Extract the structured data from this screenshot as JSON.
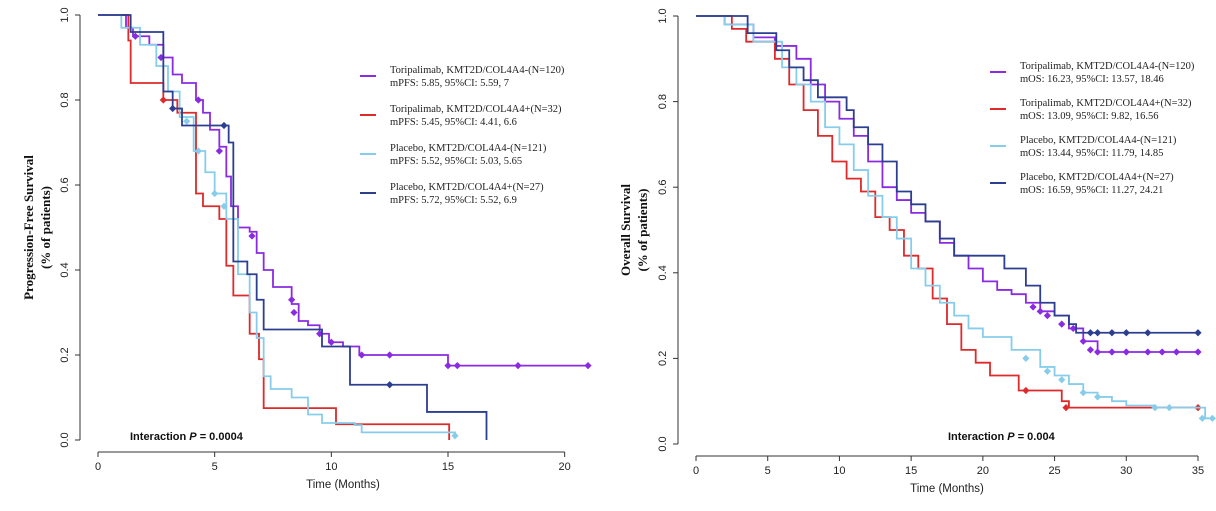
{
  "chart_data": [
    {
      "type": "line",
      "subtype": "kaplan-meier",
      "ylabel_line1": "Progression-Free Survival",
      "ylabel_line2": "(% of patients)",
      "xlabel": "Time (Months)",
      "xlim": [
        0,
        21
      ],
      "ylim": [
        0,
        1
      ],
      "xticks": [
        0,
        5,
        10,
        15,
        20
      ],
      "yticks": [
        "0.0",
        "0.2",
        "0.4",
        "0.6",
        "0.8",
        "1.0"
      ],
      "annotation": {
        "prefix": "Interaction ",
        "p": "P",
        "suffix": " = 0.0004"
      },
      "series": [
        {
          "name": "Toripalimab, KMT2D/COL4A4-(N=120)",
          "stat": "mPFS: 5.85, 95%CI: 5.59, 7",
          "color": "#8a2be2",
          "points": [
            [
              0,
              1.0
            ],
            [
              1.2,
              0.97
            ],
            [
              1.5,
              0.95
            ],
            [
              2.2,
              0.93
            ],
            [
              2.8,
              0.9
            ],
            [
              3.2,
              0.86
            ],
            [
              3.6,
              0.84
            ],
            [
              4.2,
              0.8
            ],
            [
              4.5,
              0.77
            ],
            [
              4.8,
              0.73
            ],
            [
              5.2,
              0.69
            ],
            [
              5.5,
              0.62
            ],
            [
              5.7,
              0.55
            ],
            [
              6.0,
              0.5
            ],
            [
              6.5,
              0.49
            ],
            [
              6.8,
              0.44
            ],
            [
              7.1,
              0.4
            ],
            [
              7.5,
              0.36
            ],
            [
              8.1,
              0.36
            ],
            [
              8.3,
              0.32
            ],
            [
              8.6,
              0.28
            ],
            [
              9.0,
              0.27
            ],
            [
              9.5,
              0.25
            ],
            [
              9.9,
              0.23
            ],
            [
              10.5,
              0.22
            ],
            [
              11.2,
              0.2
            ],
            [
              12.8,
              0.2
            ],
            [
              15.0,
              0.175
            ],
            [
              21.0,
              0.175
            ]
          ],
          "censors": [
            [
              1.6,
              0.95
            ],
            [
              2.7,
              0.9
            ],
            [
              4.3,
              0.8
            ],
            [
              5.2,
              0.68
            ],
            [
              6.6,
              0.48
            ],
            [
              8.3,
              0.33
            ],
            [
              8.4,
              0.3
            ],
            [
              9.5,
              0.25
            ],
            [
              10.0,
              0.23
            ],
            [
              11.3,
              0.2
            ],
            [
              12.5,
              0.2
            ],
            [
              15.0,
              0.175
            ],
            [
              15.4,
              0.175
            ],
            [
              18.0,
              0.175
            ],
            [
              21.0,
              0.175
            ]
          ]
        },
        {
          "name": "Toripalimab, KMT2D/COL4A4+(N=32)",
          "stat": "mPFS: 5.45, 95%CI: 4.41, 6.6",
          "color": "#dd2a2a",
          "points": [
            [
              0,
              1.0
            ],
            [
              1.3,
              0.94
            ],
            [
              1.4,
              0.84
            ],
            [
              2.6,
              0.84
            ],
            [
              2.8,
              0.8
            ],
            [
              3.4,
              0.77
            ],
            [
              4.2,
              0.58
            ],
            [
              4.5,
              0.55
            ],
            [
              5.2,
              0.52
            ],
            [
              5.5,
              0.41
            ],
            [
              5.8,
              0.34
            ],
            [
              6.5,
              0.25
            ],
            [
              6.9,
              0.19
            ],
            [
              7.1,
              0.075
            ],
            [
              10.0,
              0.075
            ],
            [
              10.2,
              0.037
            ],
            [
              15.0,
              0.037
            ],
            [
              15.05,
              0.0
            ]
          ],
          "censors": [
            [
              2.8,
              0.8
            ]
          ]
        },
        {
          "name": "Placebo, KMT2D/COL4A4-(N=121)",
          "stat": "mPFS: 5.52, 95%CI: 5.03, 5.65",
          "color": "#87cdeb",
          "points": [
            [
              0,
              1.0
            ],
            [
              1.0,
              0.97
            ],
            [
              1.8,
              0.93
            ],
            [
              2.5,
              0.88
            ],
            [
              3.0,
              0.82
            ],
            [
              3.5,
              0.76
            ],
            [
              4.1,
              0.68
            ],
            [
              4.6,
              0.63
            ],
            [
              5.0,
              0.58
            ],
            [
              5.5,
              0.52
            ],
            [
              6.0,
              0.39
            ],
            [
              6.5,
              0.3
            ],
            [
              6.8,
              0.24
            ],
            [
              7.1,
              0.15
            ],
            [
              7.4,
              0.12
            ],
            [
              8.3,
              0.1
            ],
            [
              9.0,
              0.06
            ],
            [
              9.6,
              0.04
            ],
            [
              11.0,
              0.035
            ],
            [
              11.3,
              0.018
            ],
            [
              15.3,
              0.01
            ]
          ],
          "censors": [
            [
              3.8,
              0.75
            ],
            [
              4.3,
              0.68
            ],
            [
              5.0,
              0.58
            ],
            [
              5.4,
              0.55
            ],
            [
              15.3,
              0.01
            ]
          ]
        },
        {
          "name": "Placebo, KMT2D/COL4A4+(N=27)",
          "stat": "mPFS: 5.72, 95%CI: 5.52, 6.9",
          "color": "#2c3e90",
          "points": [
            [
              0,
              1.0
            ],
            [
              1.2,
              1.0
            ],
            [
              1.4,
              0.96
            ],
            [
              2.6,
              0.96
            ],
            [
              2.8,
              0.82
            ],
            [
              3.2,
              0.78
            ],
            [
              3.6,
              0.74
            ],
            [
              5.5,
              0.74
            ],
            [
              5.6,
              0.7
            ],
            [
              5.8,
              0.42
            ],
            [
              6.4,
              0.39
            ],
            [
              6.8,
              0.33
            ],
            [
              7.1,
              0.26
            ],
            [
              9.4,
              0.26
            ],
            [
              9.6,
              0.22
            ],
            [
              10.8,
              0.13
            ],
            [
              14.0,
              0.13
            ],
            [
              14.1,
              0.066
            ],
            [
              16.65,
              0.066
            ],
            [
              16.65,
              0.0
            ]
          ],
          "censors": [
            [
              3.2,
              0.78
            ],
            [
              5.4,
              0.74
            ],
            [
              12.5,
              0.13
            ]
          ]
        }
      ]
    },
    {
      "type": "line",
      "subtype": "kaplan-meier",
      "ylabel_line1": "Overall Survival",
      "ylabel_line2": "(% of patients)",
      "xlabel": "Time (Months)",
      "xlim": [
        0,
        35
      ],
      "ylim": [
        0,
        1
      ],
      "xticks": [
        0,
        5,
        10,
        15,
        20,
        25,
        30,
        35
      ],
      "yticks": [
        "0.0",
        "0.2",
        "0.4",
        "0.6",
        "0.8",
        "1.0"
      ],
      "annotation": {
        "prefix": "Interaction ",
        "p": "P",
        "suffix": " = 0.004"
      },
      "series": [
        {
          "name": "Toripalimab, KMT2D/COL4A4-(N=120)",
          "stat": "mOS: 16.23, 95%CI: 13.57, 18.46",
          "color": "#8a2be2",
          "points": [
            [
              0,
              1.0
            ],
            [
              2,
              0.98
            ],
            [
              4,
              0.95
            ],
            [
              5.5,
              0.93
            ],
            [
              7,
              0.9
            ],
            [
              8,
              0.84
            ],
            [
              9,
              0.8
            ],
            [
              10,
              0.76
            ],
            [
              11,
              0.72
            ],
            [
              12,
              0.66
            ],
            [
              13,
              0.6
            ],
            [
              14,
              0.57
            ],
            [
              15,
              0.54
            ],
            [
              16,
              0.52
            ],
            [
              17,
              0.47
            ],
            [
              18,
              0.44
            ],
            [
              19,
              0.41
            ],
            [
              20,
              0.38
            ],
            [
              21,
              0.36
            ],
            [
              22,
              0.35
            ],
            [
              23,
              0.33
            ],
            [
              24,
              0.31
            ],
            [
              25,
              0.3
            ],
            [
              26,
              0.27
            ],
            [
              27,
              0.24
            ],
            [
              28,
              0.215
            ],
            [
              35,
              0.215
            ]
          ],
          "censors": [
            [
              23.5,
              0.32
            ],
            [
              24,
              0.31
            ],
            [
              24.5,
              0.3
            ],
            [
              25.5,
              0.28
            ],
            [
              26.3,
              0.27
            ],
            [
              27,
              0.24
            ],
            [
              27.5,
              0.22
            ],
            [
              28,
              0.215
            ],
            [
              29,
              0.215
            ],
            [
              30,
              0.215
            ],
            [
              31.5,
              0.215
            ],
            [
              32.5,
              0.215
            ],
            [
              33.5,
              0.215
            ],
            [
              35,
              0.215
            ]
          ]
        },
        {
          "name": "Toripalimab, KMT2D/COL4A4+(N=32)",
          "stat": "mOS: 13.09, 95%CI: 9.82, 16.56",
          "color": "#dd2a2a",
          "points": [
            [
              0,
              1.0
            ],
            [
              2.5,
              0.97
            ],
            [
              3.5,
              0.94
            ],
            [
              5.5,
              0.9
            ],
            [
              6.5,
              0.84
            ],
            [
              7.5,
              0.78
            ],
            [
              8.5,
              0.72
            ],
            [
              9.5,
              0.66
            ],
            [
              10.5,
              0.62
            ],
            [
              11.5,
              0.59
            ],
            [
              12.5,
              0.53
            ],
            [
              13.5,
              0.5
            ],
            [
              14.5,
              0.44
            ],
            [
              15.5,
              0.41
            ],
            [
              16.5,
              0.34
            ],
            [
              17.5,
              0.28
            ],
            [
              18.5,
              0.22
            ],
            [
              19.5,
              0.19
            ],
            [
              20.5,
              0.16
            ],
            [
              22.5,
              0.125
            ],
            [
              25.5,
              0.1
            ],
            [
              26,
              0.085
            ],
            [
              35,
              0.085
            ]
          ],
          "censors": [
            [
              23,
              0.125
            ],
            [
              25.8,
              0.085
            ],
            [
              35,
              0.085
            ]
          ]
        },
        {
          "name": "Placebo, KMT2D/COL4A4-(N=121)",
          "stat": "mOS: 13.44, 95%CI: 11.79, 14.85",
          "color": "#87cdeb",
          "points": [
            [
              0,
              1.0
            ],
            [
              2,
              0.98
            ],
            [
              4,
              0.94
            ],
            [
              6,
              0.88
            ],
            [
              7,
              0.84
            ],
            [
              8,
              0.8
            ],
            [
              9,
              0.74
            ],
            [
              10,
              0.7
            ],
            [
              11,
              0.64
            ],
            [
              12,
              0.58
            ],
            [
              13,
              0.53
            ],
            [
              14,
              0.48
            ],
            [
              15,
              0.41
            ],
            [
              16,
              0.37
            ],
            [
              17,
              0.33
            ],
            [
              18,
              0.3
            ],
            [
              19,
              0.27
            ],
            [
              20,
              0.25
            ],
            [
              22,
              0.22
            ],
            [
              24,
              0.18
            ],
            [
              25,
              0.16
            ],
            [
              26,
              0.14
            ],
            [
              27,
              0.12
            ],
            [
              28,
              0.11
            ],
            [
              29,
              0.1
            ],
            [
              30,
              0.09
            ],
            [
              31,
              0.09
            ],
            [
              32,
              0.085
            ],
            [
              35,
              0.085
            ],
            [
              35.5,
              0.06
            ],
            [
              36.2,
              0.06
            ]
          ],
          "censors": [
            [
              23,
              0.2
            ],
            [
              24.5,
              0.17
            ],
            [
              25.5,
              0.15
            ],
            [
              27,
              0.12
            ],
            [
              28,
              0.11
            ],
            [
              32,
              0.085
            ],
            [
              33,
              0.085
            ],
            [
              35.3,
              0.06
            ],
            [
              36,
              0.06
            ]
          ]
        },
        {
          "name": "Placebo, KMT2D/COL4A4+(N=27)",
          "stat": "mOS: 16.59, 95%CI: 11.27, 24.21",
          "color": "#2c3e90",
          "points": [
            [
              0,
              1.0
            ],
            [
              3.5,
              1.0
            ],
            [
              3.6,
              0.96
            ],
            [
              5.5,
              0.96
            ],
            [
              5.6,
              0.92
            ],
            [
              6.5,
              0.88
            ],
            [
              7.5,
              0.85
            ],
            [
              8.5,
              0.81
            ],
            [
              10,
              0.81
            ],
            [
              10.5,
              0.78
            ],
            [
              11,
              0.74
            ],
            [
              12,
              0.7
            ],
            [
              13,
              0.66
            ],
            [
              14,
              0.59
            ],
            [
              15,
              0.56
            ],
            [
              16,
              0.52
            ],
            [
              17,
              0.48
            ],
            [
              18,
              0.44
            ],
            [
              21,
              0.44
            ],
            [
              21.5,
              0.41
            ],
            [
              23,
              0.37
            ],
            [
              24,
              0.33
            ],
            [
              25,
              0.3
            ],
            [
              26,
              0.28
            ],
            [
              26.5,
              0.26
            ],
            [
              35,
              0.26
            ]
          ],
          "censors": [
            [
              27.5,
              0.26
            ],
            [
              28,
              0.26
            ],
            [
              29,
              0.26
            ],
            [
              30,
              0.26
            ],
            [
              31.5,
              0.26
            ],
            [
              35,
              0.26
            ]
          ]
        }
      ]
    }
  ]
}
